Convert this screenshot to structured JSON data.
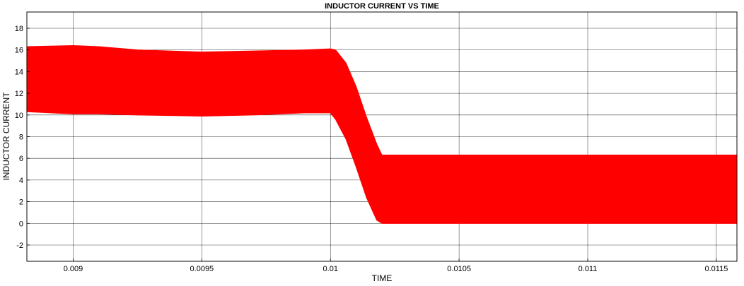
{
  "chart_data": {
    "type": "area",
    "title": "INDUCTOR CURRENT VS TIME",
    "xlabel": "TIME",
    "ylabel": "INDUCTOR CURRENT",
    "xlim": [
      0.00882,
      0.01158
    ],
    "ylim": [
      -3.5,
      19.5
    ],
    "xticks": [
      0.009,
      0.0095,
      0.01,
      0.0105,
      0.011,
      0.0115
    ],
    "xtick_labels": [
      "0.009",
      "0.0095",
      "0.01",
      "0.0105",
      "0.011",
      "0.0115"
    ],
    "yticks": [
      -2,
      0,
      2,
      4,
      6,
      8,
      10,
      12,
      14,
      16,
      18
    ],
    "ytick_labels": [
      "-2",
      "0",
      "2",
      "4",
      "6",
      "8",
      "10",
      "12",
      "14",
      "16",
      "18"
    ],
    "grid": true,
    "series": [
      {
        "color": "#ff0000",
        "envelope": {
          "x": [
            0.00882,
            0.009,
            0.0091,
            0.00925,
            0.0095,
            0.0097,
            0.0099,
            0.01,
            0.01002,
            0.01006,
            0.0101,
            0.01014,
            0.01018,
            0.0102,
            0.0103,
            0.0105,
            0.011,
            0.0115,
            0.01158
          ],
          "upper": [
            16.3,
            16.4,
            16.3,
            16.0,
            15.8,
            15.9,
            16.0,
            16.1,
            16.0,
            14.8,
            12.6,
            9.8,
            7.3,
            6.3,
            6.3,
            6.3,
            6.3,
            6.3,
            6.3
          ],
          "lower": [
            10.3,
            10.1,
            10.1,
            10.0,
            9.9,
            10.0,
            10.2,
            10.2,
            9.6,
            7.8,
            5.2,
            2.4,
            0.3,
            0.0,
            0.0,
            0.0,
            0.0,
            0.0,
            0.0
          ]
        }
      }
    ]
  }
}
